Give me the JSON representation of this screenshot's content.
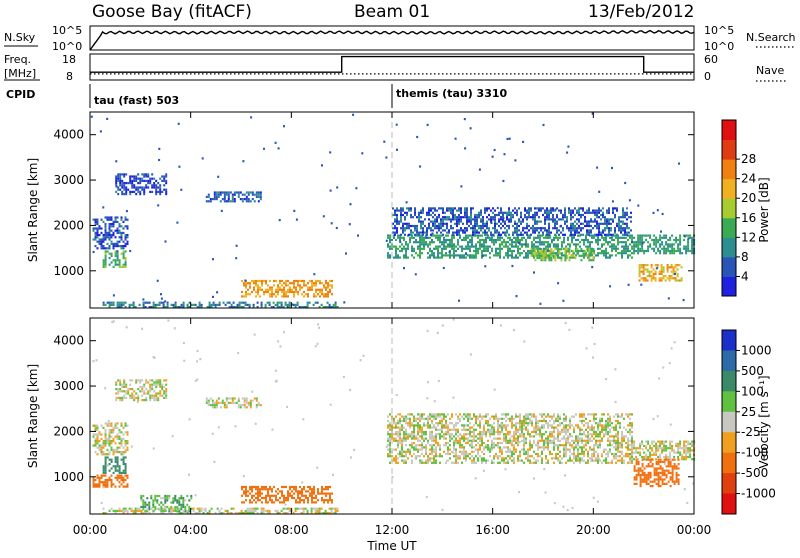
{
  "header": {
    "station": "Goose Bay (fitACF)",
    "beam": "Beam 01",
    "date": "13/Feb/2012"
  },
  "panels": {
    "noise": {
      "left_label": "N.Sky",
      "right_label": "N.Search",
      "left_ticks": [
        "10^5",
        "10^0"
      ],
      "right_ticks": [
        "10^5",
        "10^0"
      ]
    },
    "freq": {
      "left_label_1": "Freq.",
      "left_label_2": "[MHz]",
      "right_label": "Nave",
      "left_ticks": [
        "18",
        "8"
      ],
      "right_ticks": [
        "60",
        "0"
      ]
    },
    "cpid": {
      "label": "CPID",
      "modes": [
        {
          "text": "tau (fast) 503",
          "start_hour": 0
        },
        {
          "text": "themis (tau) 3310",
          "start_hour": 12
        }
      ]
    }
  },
  "axes": {
    "ylabel": "Slant Range [km]",
    "xlabel": "Time UT",
    "x_ticks": [
      "00:00",
      "04:00",
      "08:00",
      "12:00",
      "16:00",
      "20:00",
      "00:00"
    ],
    "y_ticks": [
      "1000",
      "2000",
      "3000",
      "4000"
    ]
  },
  "power_scale": {
    "label": "Power [dB]",
    "ticks": [
      "4",
      "8",
      "12",
      "16",
      "20",
      "24",
      "28"
    ],
    "colors": [
      "#2020e0",
      "#2a55b8",
      "#2d8e90",
      "#3aaa55",
      "#a8cc30",
      "#f0b020",
      "#f08010",
      "#e03c14",
      "#e01010"
    ]
  },
  "velocity_scale": {
    "label": "Velocity [m s⁻¹]",
    "ticks": [
      "1000",
      "500",
      "100",
      "25",
      "-25",
      "-100",
      "-500",
      "-1000"
    ],
    "colors": [
      "#1a30c8",
      "#2d6aa8",
      "#3a8a6a",
      "#60c040",
      "#c8c8c0",
      "#f0a020",
      "#f07010",
      "#e04010",
      "#e01010"
    ]
  },
  "chart_data": [
    {
      "type": "line",
      "title": "N.Sky / N.Search",
      "xlabel": "",
      "ylabel": "",
      "x_range_hours": [
        0,
        24
      ],
      "series": [
        {
          "name": "N.Sky",
          "x": [
            0,
            0.5,
            2,
            4,
            6,
            8,
            10,
            12,
            14,
            16,
            18,
            20,
            22,
            24
          ],
          "y_log10": [
            0,
            3.6,
            3.7,
            3.6,
            3.7,
            3.6,
            3.7,
            3.6,
            3.6,
            3.7,
            3.6,
            3.7,
            3.8,
            3.7
          ]
        }
      ]
    },
    {
      "type": "line",
      "title": "Freq. / Nave",
      "xlabel": "",
      "ylabel": "",
      "x_range_hours": [
        0,
        24
      ],
      "series": [
        {
          "name": "Freq.",
          "x": [
            0,
            10,
            10,
            22,
            22,
            24
          ],
          "y": [
            11,
            11,
            17,
            17,
            11,
            11
          ]
        },
        {
          "name": "Nave",
          "x": [
            0,
            24
          ],
          "y": [
            14,
            14
          ]
        }
      ]
    },
    {
      "type": "heatmap",
      "title": "Power [dB]",
      "xlabel": "Time UT",
      "ylabel": "Slant Range [km]",
      "x_range_hours": [
        0,
        24
      ],
      "ylim": [
        180,
        4500
      ],
      "blobs": [
        {
          "x0": 0.1,
          "x1": 1.5,
          "y0": 1500,
          "y1": 2200,
          "power": 6
        },
        {
          "x0": 0.5,
          "x1": 1.4,
          "y0": 1100,
          "y1": 1450,
          "power": 14
        },
        {
          "x0": 1.0,
          "x1": 3.0,
          "y0": 2700,
          "y1": 3150,
          "power": 5
        },
        {
          "x0": 4.6,
          "x1": 6.8,
          "y0": 2550,
          "y1": 2750,
          "power": 6
        },
        {
          "x0": 6.0,
          "x1": 9.6,
          "y0": 450,
          "y1": 800,
          "power": 24
        },
        {
          "x0": 0.5,
          "x1": 9.8,
          "y0": 200,
          "y1": 320,
          "power": 9
        },
        {
          "x0": 11.8,
          "x1": 21.5,
          "y0": 1300,
          "y1": 1800,
          "power": 12
        },
        {
          "x0": 12.0,
          "x1": 21.5,
          "y0": 1800,
          "y1": 2400,
          "power": 6
        },
        {
          "x0": 17.5,
          "x1": 20.0,
          "y0": 1250,
          "y1": 1500,
          "power": 17
        },
        {
          "x0": 21.5,
          "x1": 24.0,
          "y0": 1400,
          "y1": 1800,
          "power": 12
        },
        {
          "x0": 21.8,
          "x1": 23.5,
          "y0": 800,
          "y1": 1150,
          "power": 22
        }
      ]
    },
    {
      "type": "heatmap",
      "title": "Velocity [m s-1]",
      "xlabel": "Time UT",
      "ylabel": "Slant Range [km]",
      "x_range_hours": [
        0,
        24
      ],
      "ylim": [
        180,
        4500
      ],
      "blobs": [
        {
          "x0": 0.1,
          "x1": 1.5,
          "y0": 1500,
          "y1": 2200,
          "velocity": 0
        },
        {
          "x0": 0.5,
          "x1": 1.4,
          "y0": 1100,
          "y1": 1450,
          "velocity": 200
        },
        {
          "x0": 0.1,
          "x1": 1.5,
          "y0": 800,
          "y1": 1050,
          "velocity": -200
        },
        {
          "x0": 1.0,
          "x1": 3.0,
          "y0": 2700,
          "y1": 3150,
          "velocity": 0
        },
        {
          "x0": 4.6,
          "x1": 6.8,
          "y0": 2550,
          "y1": 2750,
          "velocity": 0
        },
        {
          "x0": 6.0,
          "x1": 9.6,
          "y0": 450,
          "y1": 800,
          "velocity": -200
        },
        {
          "x0": 2.0,
          "x1": 4.0,
          "y0": 220,
          "y1": 600,
          "velocity": 80
        },
        {
          "x0": 0.5,
          "x1": 9.8,
          "y0": 200,
          "y1": 320,
          "velocity": 0
        },
        {
          "x0": 11.8,
          "x1": 21.5,
          "y0": 1300,
          "y1": 2400,
          "velocity": 0
        },
        {
          "x0": 21.5,
          "x1": 24.0,
          "y0": 1400,
          "y1": 1800,
          "velocity": 0
        },
        {
          "x0": 21.6,
          "x1": 23.4,
          "y0": 800,
          "y1": 1400,
          "velocity": -300
        }
      ]
    }
  ]
}
